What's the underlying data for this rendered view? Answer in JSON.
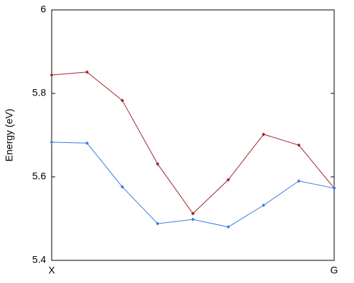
{
  "chart_data": {
    "type": "line",
    "y_label": "Energy (eV)",
    "categories": [
      "X",
      null,
      null,
      null,
      null,
      null,
      null,
      null,
      "G"
    ],
    "series": [
      {
        "color": "#a0202a",
        "values": [
          5.844,
          5.851,
          5.783,
          5.631,
          5.512,
          5.593,
          5.702,
          5.676,
          5.573
        ]
      },
      {
        "color": "#3a7ae0",
        "values": [
          5.683,
          5.681,
          5.576,
          5.488,
          5.498,
          5.48,
          5.532,
          5.59,
          5.573
        ]
      }
    ],
    "ylim": [
      5.4,
      6
    ],
    "yticks": [
      5.4,
      5.6,
      5.8,
      6
    ],
    "grid": false
  }
}
